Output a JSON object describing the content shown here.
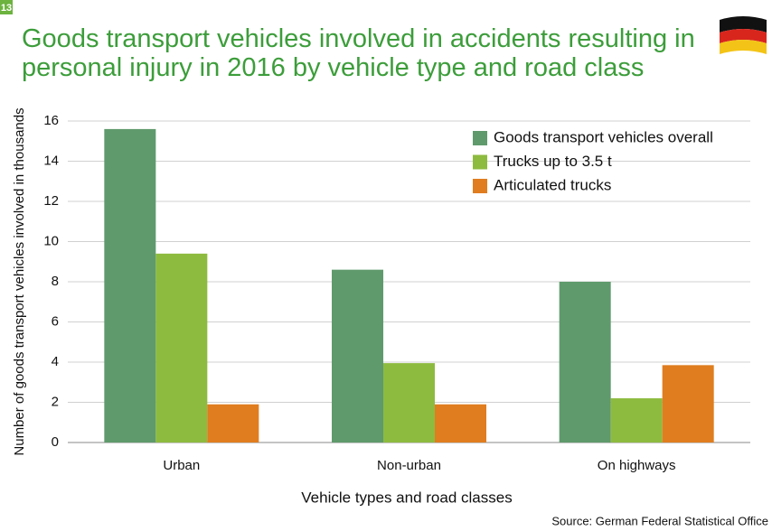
{
  "chart_data": {
    "type": "bar",
    "figure_number": "13",
    "title": [
      "Goods transport vehicles involved in accidents resulting in",
      "personal injury in 2016 by vehicle type and road class"
    ],
    "x_label": "Vehicle types and road classes",
    "y_label": "Number of goods transport vehicles involved in thousands",
    "source": "Source: German Federal Statistical Office",
    "categories": [
      "Urban",
      "Non-urban",
      "On highways"
    ],
    "series": [
      {
        "name": "Goods transport vehicles overall",
        "color": "#5f9a6c",
        "values": [
          15.6,
          8.6,
          8.0
        ]
      },
      {
        "name": "Trucks up to 3.5 t",
        "color": "#8dbb3f",
        "values": [
          9.4,
          3.95,
          2.2
        ]
      },
      {
        "name": "Articulated trucks",
        "color": "#e07d1f",
        "values": [
          1.9,
          1.9,
          3.85
        ]
      }
    ],
    "ylim": [
      0,
      16
    ],
    "yticks": [
      0,
      2,
      4,
      6,
      8,
      10,
      12,
      14,
      16
    ],
    "grid": true,
    "legend": "top-right"
  }
}
